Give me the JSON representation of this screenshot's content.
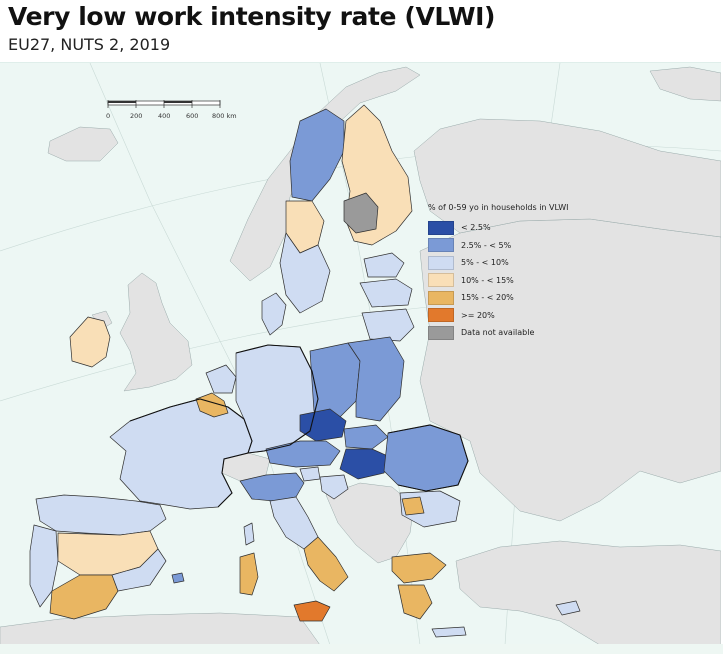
{
  "header": {
    "title": "Very low work intensity rate (VLWI)",
    "subtitle": "EU27, NUTS 2, 2019"
  },
  "legend": {
    "title": "% of 0-59 yo in households in VLWI",
    "items": [
      {
        "label": "< 2.5%",
        "color": "#2b4fa6"
      },
      {
        "label": "2.5% - < 5%",
        "color": "#7b9ad6"
      },
      {
        "label": "5% - < 10%",
        "color": "#cfdcf2"
      },
      {
        "label": "10% - < 15%",
        "color": "#f9dfb7"
      },
      {
        "label": "15% - < 20%",
        "color": "#e9b662"
      },
      {
        "label": ">= 20%",
        "color": "#e2792c"
      },
      {
        "label": "Data not available",
        "color": "#9a9a9a"
      }
    ]
  },
  "scale_bar": {
    "ticks": [
      "0",
      "200",
      "400",
      "600",
      "800 km"
    ]
  },
  "colors": {
    "sea": "#edf7f4",
    "non_eu_land": "#e3e3e3",
    "border": "#333333"
  }
}
